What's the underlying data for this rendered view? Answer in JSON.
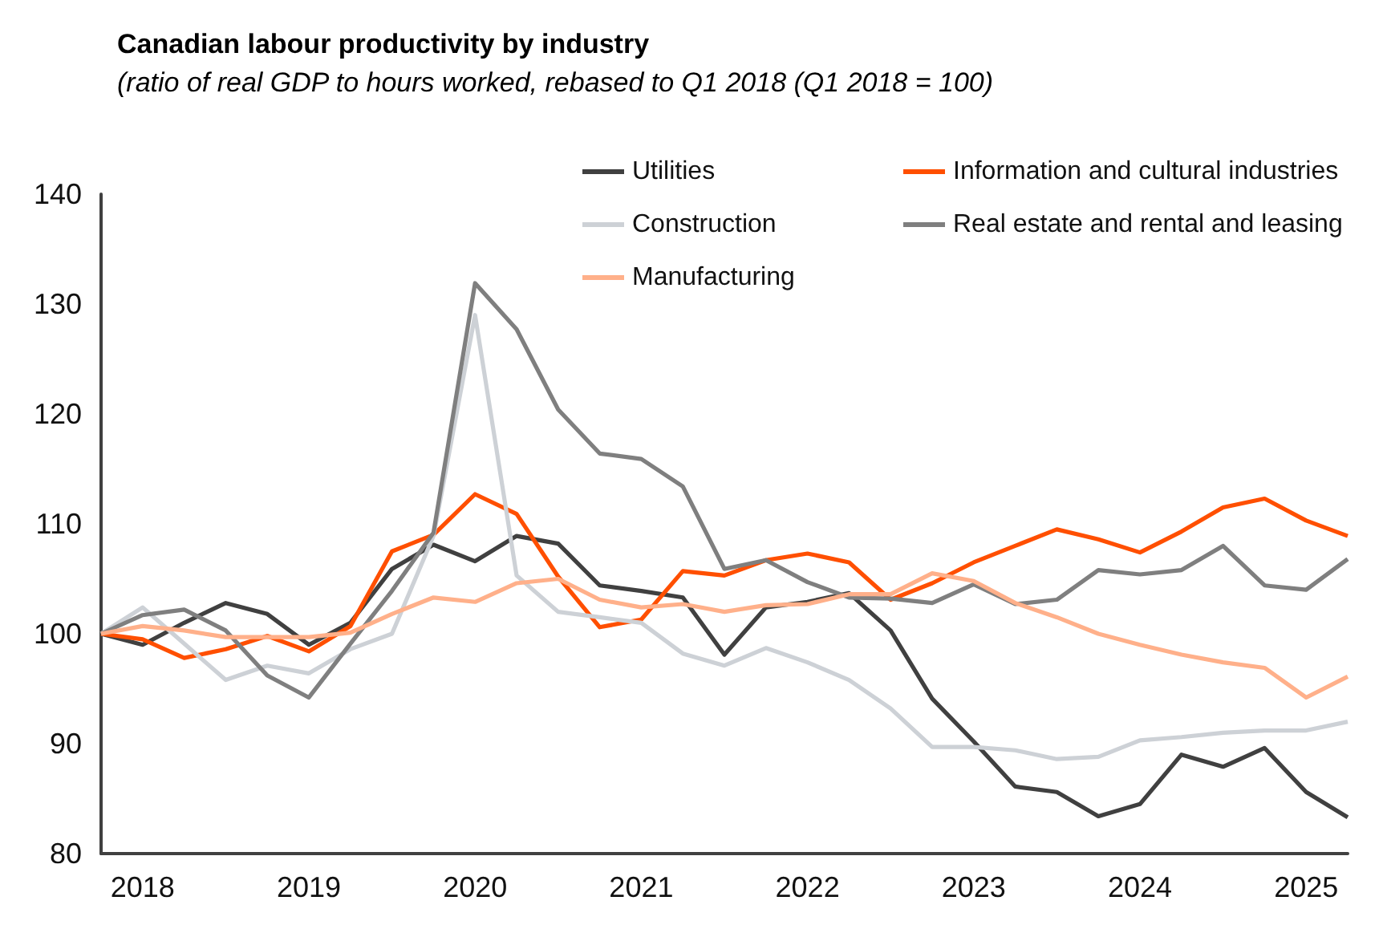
{
  "chart_data": {
    "type": "line",
    "title": "Canadian labour productivity by industry",
    "subtitle": "(ratio of real GDP to hours worked, rebased to Q1 2018 (Q1 2018 = 100)",
    "categories": [
      null,
      "2018",
      null,
      null,
      null,
      "2019",
      null,
      null,
      null,
      "2020",
      null,
      null,
      null,
      "2021",
      null,
      null,
      null,
      "2022",
      null,
      null,
      null,
      "2023",
      null,
      null,
      null,
      "2024",
      null,
      null,
      null,
      "2025",
      null
    ],
    "series": [
      {
        "name": "Utilities",
        "color": "#404040",
        "values": [
          100,
          99,
          101,
          102.8,
          101.8,
          99,
          101,
          105.9,
          108.1,
          106.6,
          108.9,
          108.2,
          104.4,
          103.9,
          103.3,
          98.1,
          102.4,
          102.9,
          103.7,
          100.3,
          94.1,
          90.2,
          86.1,
          85.6,
          83.4,
          84.5,
          89,
          87.9,
          89.6,
          85.6,
          83.3
        ]
      },
      {
        "name": "Information and cultural industries",
        "color": "#ff4f00",
        "values": [
          100,
          99.5,
          97.8,
          98.6,
          99.8,
          98.4,
          100.7,
          107.5,
          109,
          112.7,
          110.9,
          105.2,
          100.6,
          101.3,
          105.7,
          105.3,
          106.7,
          107.3,
          106.5,
          103.1,
          104.6,
          106.5,
          108,
          109.5,
          108.6,
          107.4,
          109.3,
          111.5,
          112.3,
          110.3,
          108.9
        ]
      },
      {
        "name": "Construction",
        "color": "#cdd1d6",
        "values": [
          100,
          102.4,
          99.1,
          95.8,
          97.1,
          96.4,
          98.6,
          100,
          108.9,
          129,
          105.3,
          102,
          101.5,
          101,
          98.2,
          97.1,
          98.7,
          97.4,
          95.8,
          93.2,
          89.7,
          89.7,
          89.4,
          88.6,
          88.8,
          90.3,
          90.6,
          91,
          91.2,
          91.2,
          92
        ]
      },
      {
        "name": "Real estate and rental and leasing",
        "color": "#7f7f7f",
        "values": [
          100,
          101.7,
          102.2,
          100.3,
          96.2,
          94.2,
          99.1,
          103.9,
          109.2,
          131.9,
          127.7,
          120.4,
          116.4,
          115.9,
          113.4,
          105.9,
          106.7,
          104.7,
          103.3,
          103.2,
          102.8,
          104.5,
          102.7,
          103.1,
          105.8,
          105.4,
          105.8,
          108,
          104.4,
          104,
          106.8
        ]
      },
      {
        "name": "Manufacturing",
        "color": "#ffb08a",
        "values": [
          100,
          100.7,
          100.3,
          99.7,
          99.7,
          99.7,
          100.1,
          101.8,
          103.3,
          102.9,
          104.6,
          105,
          103.1,
          102.4,
          102.7,
          102,
          102.6,
          102.7,
          103.6,
          103.6,
          105.5,
          104.8,
          102.8,
          101.5,
          100,
          99,
          98.1,
          97.4,
          96.9,
          94.2,
          96.1
        ]
      }
    ],
    "ylim": [
      80,
      140
    ],
    "yticks": [
      80,
      90,
      100,
      110,
      120,
      130,
      140
    ],
    "grid": false,
    "legend": "top right",
    "marker": "none",
    "line_style": "solid"
  }
}
